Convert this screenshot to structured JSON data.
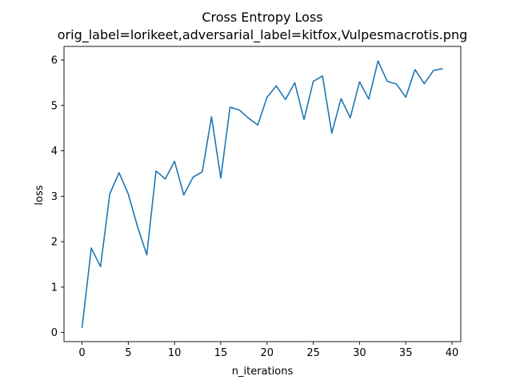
{
  "chart_data": {
    "type": "line",
    "title": "Cross Entropy Loss",
    "subtitle": "orig_label=lorikeet,adversarial_label=kitfox,Vulpesmacrotis.png",
    "xlabel": "n_iterations",
    "ylabel": "loss",
    "xlim": [
      -1.95,
      40.95
    ],
    "ylim": [
      -0.2,
      6.3
    ],
    "xticks": [
      0,
      5,
      10,
      15,
      20,
      25,
      30,
      35,
      40
    ],
    "yticks": [
      0,
      1,
      2,
      3,
      4,
      5,
      6
    ],
    "grid": false,
    "line_color": "#1f77b4",
    "series": [
      {
        "x": [
          0,
          1,
          2,
          3,
          4,
          5,
          6,
          7,
          8,
          9,
          10,
          11,
          12,
          13,
          14,
          15,
          16,
          17,
          18,
          19,
          20,
          21,
          22,
          23,
          24,
          25,
          26,
          27,
          28,
          29,
          30,
          31,
          32,
          33,
          34,
          35,
          36,
          37,
          38,
          39
        ],
        "values": [
          0.1,
          1.86,
          1.45,
          3.05,
          3.52,
          3.05,
          2.33,
          1.71,
          3.56,
          3.38,
          3.77,
          3.03,
          3.42,
          3.54,
          4.75,
          3.4,
          4.96,
          4.9,
          4.72,
          4.57,
          5.18,
          5.43,
          5.13,
          5.5,
          4.69,
          5.53,
          5.65,
          4.39,
          5.15,
          4.73,
          5.52,
          5.14,
          5.98,
          5.53,
          5.47,
          5.18,
          5.79,
          5.48,
          5.77,
          5.81
        ]
      }
    ]
  }
}
